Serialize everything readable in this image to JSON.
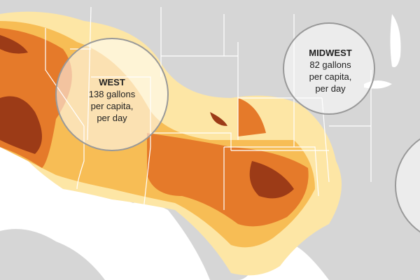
{
  "regions": [
    {
      "name": "WEST",
      "lines": [
        "138 gallons",
        "per capita,",
        "per day"
      ]
    },
    {
      "name": "MIDWEST",
      "lines": [
        "82 gallons",
        "per capita,",
        "per day"
      ]
    }
  ]
}
